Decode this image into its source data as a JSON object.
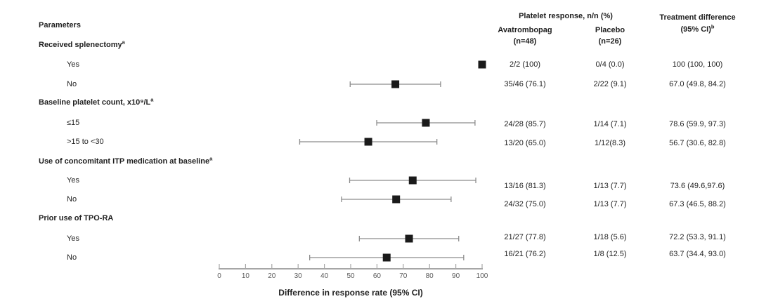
{
  "figure": {
    "params_header": "Parameters",
    "group_header": "Platelet response, n/n (%)",
    "arm1_name": "Avatrombopag",
    "arm1_n": "(n=48)",
    "arm2_name": "Placebo",
    "arm2_n": "(n=26)",
    "diff_line1": "Treatment difference",
    "diff_line2": "(95% CI)",
    "diff_sup": "b"
  },
  "colors": {
    "marker": "#1a1a1a",
    "ci_line": "#8c8c8c",
    "axis": "#a6a6a6",
    "tick_text": "#595959",
    "text": "#1f1f1f"
  },
  "chart_data": {
    "type": "forest",
    "xlabel": "Difference in response rate (95% CI)",
    "xlim": [
      0,
      100
    ],
    "xticks": [
      0,
      10,
      20,
      30,
      40,
      50,
      60,
      70,
      80,
      90,
      100
    ],
    "rows": [
      {
        "kind": "group",
        "label": "Received splenectomy",
        "sup": "a"
      },
      {
        "kind": "item",
        "label": "Yes",
        "estimate": 100,
        "ci_low": 100,
        "ci_high": 100,
        "avatrombopag": "2/2 (100)",
        "placebo": "0/4 (0.0)",
        "difference": "100 (100, 100)"
      },
      {
        "kind": "item",
        "label": "No",
        "estimate": 67.0,
        "ci_low": 49.8,
        "ci_high": 84.2,
        "avatrombopag": "35/46 (76.1)",
        "placebo": "2/22 (9.1)",
        "difference": "67.0 (49.8, 84.2)"
      },
      {
        "kind": "group",
        "label": "Baseline platelet count, x10⁹/L",
        "sup": "a"
      },
      {
        "kind": "item",
        "label": "≤15",
        "estimate": 78.6,
        "ci_low": 59.9,
        "ci_high": 97.3,
        "avatrombopag": "24/28 (85.7)",
        "placebo": "1/14 (7.1)",
        "difference": "78.6 (59.9, 97.3)"
      },
      {
        "kind": "item",
        "label": ">15 to <30",
        "estimate": 56.7,
        "ci_low": 30.6,
        "ci_high": 82.8,
        "avatrombopag": "13/20 (65.0)",
        "placebo": "1/12(8.3)",
        "difference": "56.7 (30.6, 82.8)"
      },
      {
        "kind": "group",
        "label": "Use of concomitant ITP medication at baseline",
        "sup": "a"
      },
      {
        "kind": "item",
        "label": "Yes",
        "estimate": 73.6,
        "ci_low": 49.6,
        "ci_high": 97.6,
        "avatrombopag": "13/16 (81.3)",
        "placebo": "1/13 (7.7)",
        "difference": "73.6 (49.6,97.6)"
      },
      {
        "kind": "item",
        "label": "No",
        "estimate": 67.3,
        "ci_low": 46.5,
        "ci_high": 88.2,
        "avatrombopag": "24/32 (75.0)",
        "placebo": "1/13 (7.7)",
        "difference": "67.3 (46.5, 88.2)"
      },
      {
        "kind": "group",
        "label": "Prior use of TPO-RA",
        "sup": ""
      },
      {
        "kind": "item",
        "label": "Yes",
        "estimate": 72.2,
        "ci_low": 53.3,
        "ci_high": 91.1,
        "avatrombopag": "21/27 (77.8)",
        "placebo": "1/18 (5.6)",
        "difference": "72.2 (53.3, 91.1)"
      },
      {
        "kind": "item",
        "label": "No",
        "estimate": 63.7,
        "ci_low": 34.4,
        "ci_high": 93.0,
        "avatrombopag": "16/21 (76.2)",
        "placebo": "1/8 (12.5)",
        "difference": "63.7 (34.4, 93.0)"
      }
    ]
  }
}
